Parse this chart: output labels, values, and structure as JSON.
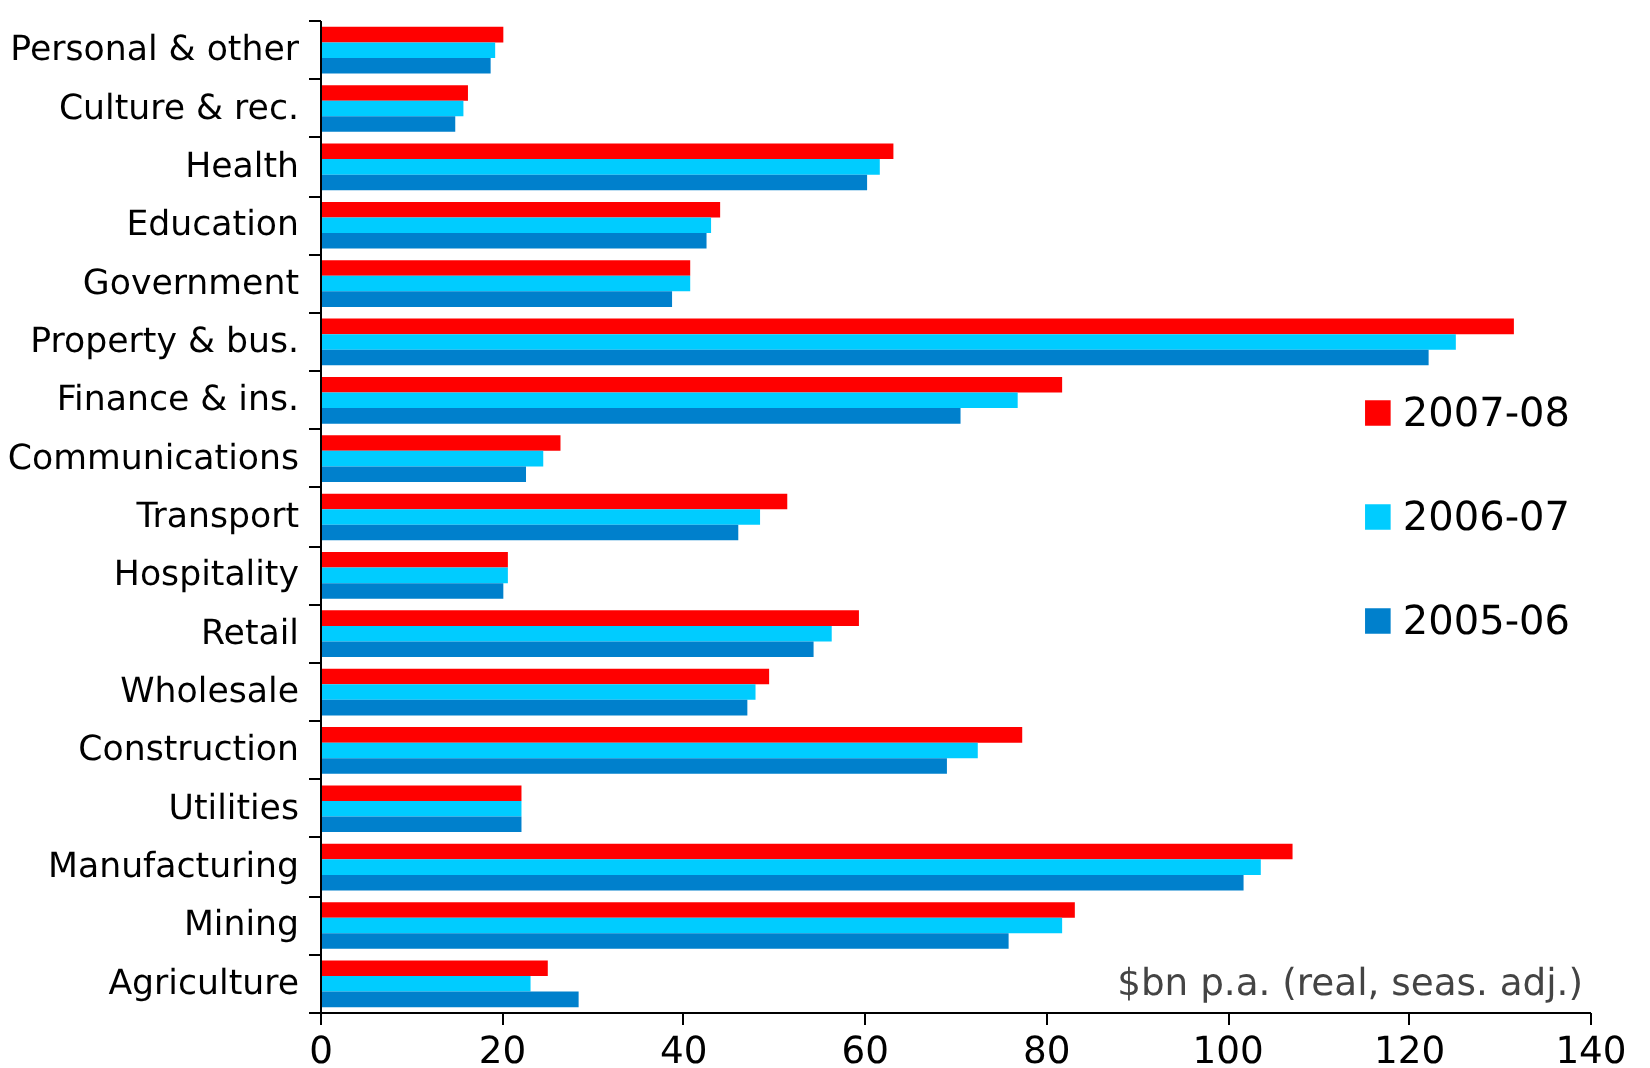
{
  "chart_data": {
    "type": "bar",
    "orientation": "horizontal",
    "categories": [
      "Personal & other",
      "Culture & rec.",
      "Health",
      "Education",
      "Government",
      "Property & bus.",
      "Finance & ins.",
      "Communications",
      "Transport",
      "Hospitality",
      "Retail",
      "Wholesale",
      "Construction",
      "Utilities",
      "Manufacturing",
      "Mining",
      "Agriculture"
    ],
    "series": [
      {
        "name": "2007-08",
        "color": "#ff0000",
        "values": [
          20.1,
          16.2,
          63.1,
          44.0,
          40.7,
          131.5,
          81.7,
          26.4,
          51.4,
          20.6,
          59.3,
          49.4,
          77.3,
          22.1,
          107.1,
          83.1,
          25.0
        ]
      },
      {
        "name": "2006-07",
        "color": "#00ccff",
        "values": [
          19.2,
          15.7,
          61.6,
          43.0,
          40.7,
          125.1,
          76.8,
          24.5,
          48.4,
          20.6,
          56.3,
          47.9,
          72.4,
          22.1,
          103.6,
          81.7,
          23.1
        ]
      },
      {
        "name": "2005-06",
        "color": "#0080cc",
        "values": [
          18.7,
          14.8,
          60.2,
          42.5,
          38.7,
          122.1,
          70.5,
          22.6,
          46.0,
          20.1,
          54.3,
          47.0,
          69.0,
          22.1,
          101.7,
          75.8,
          28.4
        ]
      }
    ],
    "xlim": [
      0,
      140
    ],
    "xticks": [
      0,
      20,
      40,
      60,
      80,
      100,
      120,
      140
    ],
    "annotations": [
      "$bn p.a. (real, seas. adj.)"
    ],
    "legend": "right",
    "grid": false
  }
}
